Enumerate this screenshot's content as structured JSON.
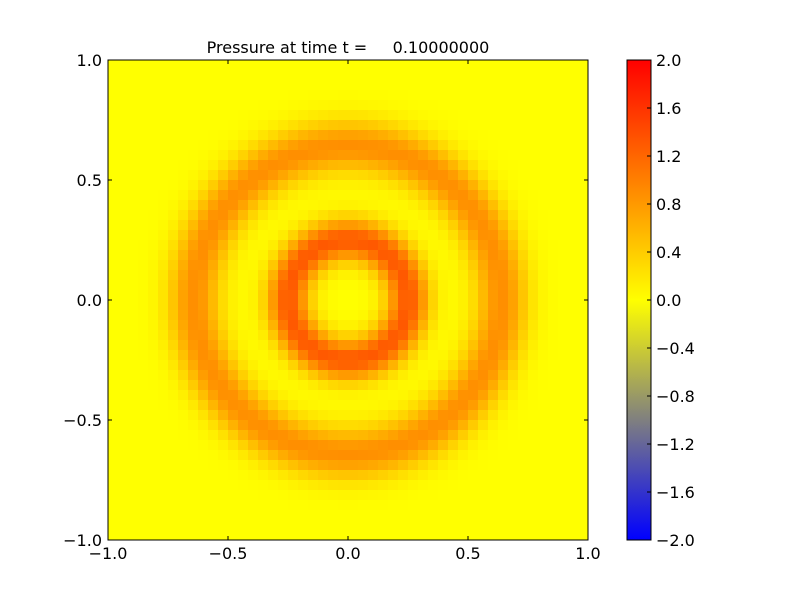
{
  "chart_data": {
    "type": "heatmap",
    "title": "Pressure at time t =     0.10000000",
    "xlabel": "",
    "ylabel": "",
    "xlim": [
      -1.0,
      1.0
    ],
    "ylim": [
      -1.0,
      1.0
    ],
    "xticks": [
      "−1.0",
      "−0.5",
      "0.0",
      "0.5",
      "1.0"
    ],
    "yticks": [
      "−1.0",
      "−0.5",
      "0.0",
      "0.5",
      "1.0"
    ],
    "xtick_values": [
      -1.0,
      -0.5,
      0.0,
      0.5,
      1.0
    ],
    "ytick_values": [
      -1.0,
      -0.5,
      0.0,
      0.5,
      1.0
    ],
    "grid_size": 48,
    "field_model": {
      "description": "radially symmetric pressure: sum of gaussian rings",
      "rings": [
        {
          "radius": 0.25,
          "amplitude": 1.3,
          "width": 0.09
        },
        {
          "radius": 0.64,
          "amplitude": 0.88,
          "width": 0.11
        }
      ]
    },
    "colorbar": {
      "vmin": -2.0,
      "vmax": 2.0,
      "ticks": [
        "2.0",
        "1.6",
        "1.2",
        "0.8",
        "0.4",
        "0.0",
        "−0.4",
        "−0.8",
        "−1.2",
        "−1.6",
        "−2.0"
      ],
      "tick_values": [
        2.0,
        1.6,
        1.2,
        0.8,
        0.4,
        0.0,
        -0.4,
        -0.8,
        -1.2,
        -1.6,
        -2.0
      ],
      "colors": {
        "min": "#0000ff",
        "mid": "#ffff00",
        "max": "#ff0000"
      }
    }
  }
}
